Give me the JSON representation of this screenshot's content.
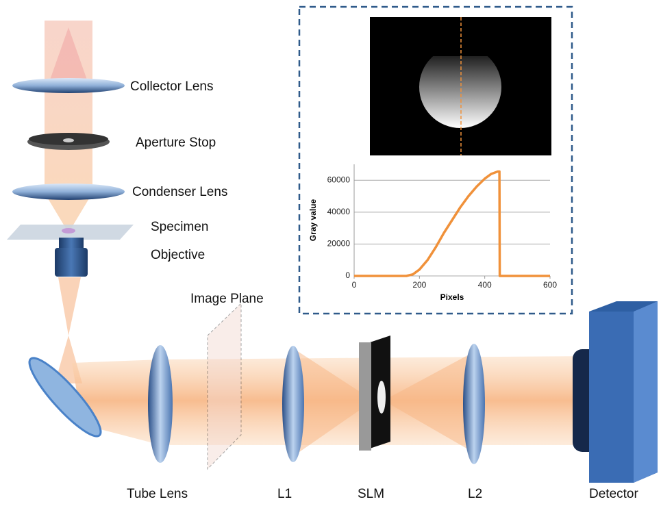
{
  "labels": {
    "collector": "Collector Lens",
    "aperture": "Aperture Stop",
    "condenser": "Condenser Lens",
    "specimen": "Specimen",
    "objective": "Objective",
    "image_plane": "Image Plane",
    "tube_lens": "Tube Lens",
    "l1": "L1",
    "slm": "SLM",
    "l2": "L2",
    "detector": "Detector"
  },
  "chart_data": {
    "type": "line",
    "x_label": "Pixels",
    "y_label": "Gray value",
    "x": [
      0,
      160,
      180,
      200,
      225,
      250,
      275,
      300,
      325,
      350,
      375,
      400,
      420,
      440,
      445,
      446,
      600
    ],
    "series": [
      {
        "color": "#f0913a",
        "values": [
          0,
          0,
          1000,
          4000,
          10000,
          18000,
          27000,
          35000,
          43000,
          50000,
          56000,
          61000,
          64000,
          65500,
          65500,
          0,
          0
        ]
      }
    ],
    "xlim": [
      0,
      600
    ],
    "xticks": [
      0,
      200,
      400,
      600
    ],
    "ylim": [
      0,
      70000
    ],
    "yticks": [
      0,
      20000,
      40000,
      60000
    ],
    "grid": true
  }
}
